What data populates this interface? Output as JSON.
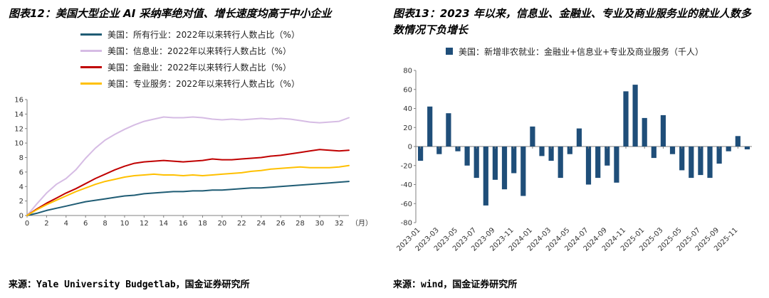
{
  "left_panel": {
    "title": "图表12：美国大型企业 AI 采纳率绝对值、增长速度均高于中小企业",
    "source": "来源：Yale University Budgetlab，国金证券研究所"
  },
  "right_panel": {
    "title": "图表13：2023 年以来，信息业、金融业、专业及商业服务业的就业人数多数情况下负增长",
    "source": "来源：wind，国金证券研究所"
  },
  "chart_data": [
    {
      "type": "line",
      "title": "美国大型企业AI采纳率",
      "x_unit_label": "（月）",
      "xlim": [
        0,
        33
      ],
      "x_ticks": [
        0,
        2,
        4,
        6,
        8,
        10,
        12,
        14,
        16,
        18,
        20,
        22,
        24,
        26,
        28,
        30,
        32
      ],
      "ylim": [
        0,
        16
      ],
      "y_ticks": [
        0,
        2,
        4,
        6,
        8,
        10,
        12,
        14,
        16
      ],
      "grid": false,
      "legend_position": "top",
      "series": [
        {
          "name": "美国：所有行业：2022年以来转行人数占比（%）",
          "color": "#1f5c74",
          "values": [
            0,
            0.3,
            0.7,
            1.0,
            1.3,
            1.6,
            1.9,
            2.1,
            2.3,
            2.5,
            2.7,
            2.8,
            3.0,
            3.1,
            3.2,
            3.3,
            3.3,
            3.4,
            3.4,
            3.5,
            3.5,
            3.6,
            3.7,
            3.8,
            3.8,
            3.9,
            4.0,
            4.1,
            4.2,
            4.3,
            4.4,
            4.5,
            4.6,
            4.7
          ]
        },
        {
          "name": "美国：信息业：2022年以来转行人数占比（%）",
          "color": "#d6bce4",
          "values": [
            0,
            1.6,
            3.1,
            4.3,
            5.1,
            6.3,
            7.9,
            9.3,
            10.4,
            11.2,
            11.9,
            12.5,
            13.0,
            13.3,
            13.6,
            13.5,
            13.5,
            13.6,
            13.5,
            13.3,
            13.2,
            13.3,
            13.2,
            13.3,
            13.4,
            13.3,
            13.4,
            13.3,
            13.1,
            12.9,
            12.8,
            12.9,
            13.0,
            13.5
          ]
        },
        {
          "name": "美国：金融业：2022年以来转行人数占比（%）",
          "color": "#c00000",
          "values": [
            0,
            0.9,
            1.7,
            2.4,
            3.1,
            3.7,
            4.4,
            5.1,
            5.7,
            6.3,
            6.8,
            7.2,
            7.4,
            7.5,
            7.6,
            7.5,
            7.4,
            7.5,
            7.6,
            7.8,
            7.7,
            7.7,
            7.8,
            7.9,
            8.0,
            8.2,
            8.3,
            8.5,
            8.7,
            8.9,
            9.1,
            9.0,
            8.9,
            9.0
          ]
        },
        {
          "name": "美国：专业服务：2022年以来转行人数占比（%）",
          "color": "#ffc000",
          "values": [
            0,
            0.8,
            1.5,
            2.1,
            2.7,
            3.3,
            3.8,
            4.3,
            4.7,
            5.0,
            5.3,
            5.5,
            5.6,
            5.7,
            5.6,
            5.6,
            5.5,
            5.6,
            5.5,
            5.6,
            5.7,
            5.8,
            5.9,
            6.1,
            6.2,
            6.4,
            6.5,
            6.6,
            6.7,
            6.6,
            6.6,
            6.6,
            6.7,
            6.9
          ]
        }
      ]
    },
    {
      "type": "bar",
      "legend": "美国：新增非农就业：金融业+信息业+专业及商业服务（千人）",
      "color": "#1f4e79",
      "ylim": [
        -80,
        80
      ],
      "y_ticks": [
        -80,
        -60,
        -40,
        -20,
        0,
        20,
        40,
        60,
        80
      ],
      "grid": false,
      "x_tick_every": 2,
      "categories": [
        "2023-01",
        "2023-02",
        "2023-03",
        "2023-04",
        "2023-05",
        "2023-06",
        "2023-07",
        "2023-08",
        "2023-09",
        "2023-10",
        "2023-11",
        "2023-12",
        "2024-01",
        "2024-02",
        "2024-03",
        "2024-04",
        "2024-05",
        "2024-06",
        "2024-07",
        "2024-08",
        "2024-09",
        "2024-10",
        "2024-11",
        "2024-12",
        "2025-01",
        "2025-02",
        "2025-03",
        "2025-04",
        "2025-05",
        "2025-06",
        "2025-07",
        "2025-08",
        "2025-09",
        "2025-10",
        "2025-11",
        "2025-12"
      ],
      "values": [
        -15,
        42,
        -8,
        35,
        -5,
        -20,
        -33,
        -62,
        -35,
        -45,
        -28,
        -52,
        21,
        -10,
        -15,
        -33,
        -8,
        19,
        -40,
        -33,
        -20,
        -38,
        58,
        65,
        30,
        -12,
        33,
        -8,
        -25,
        -33,
        -30,
        -33,
        -18,
        -5,
        11,
        -3
      ]
    }
  ]
}
